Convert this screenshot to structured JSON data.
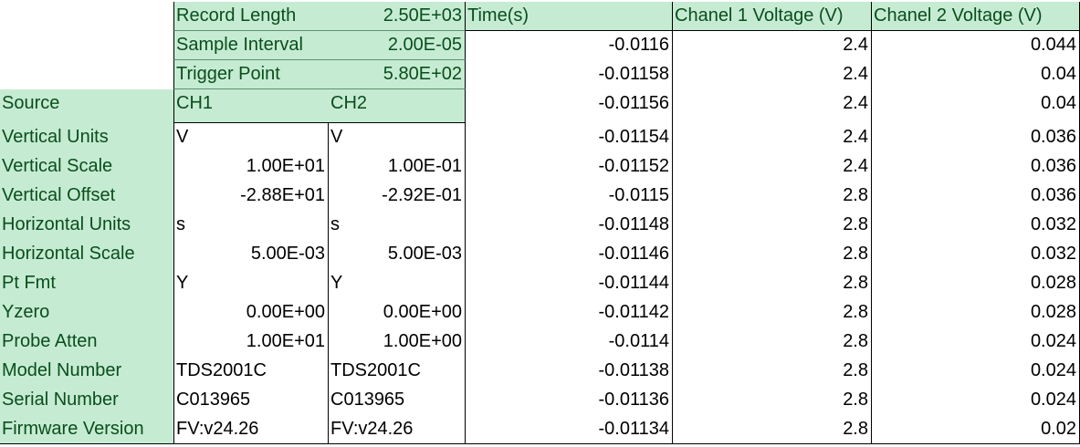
{
  "header_info": [
    {
      "label": "Record Length",
      "value": "2.50E+03"
    },
    {
      "label": "Sample Interval",
      "value": "2.00E-05"
    },
    {
      "label": "Trigger Point",
      "value": "5.80E+02"
    }
  ],
  "data_headers": [
    "Time(s)",
    "Chanel 1 Voltage (V)",
    "Chanel 2 Voltage (V)"
  ],
  "params": [
    {
      "label": "Source",
      "ch1": "CH1",
      "ch2": "CH2"
    },
    {
      "label": "Vertical Units",
      "ch1": "V",
      "ch2": "V"
    },
    {
      "label": "Vertical Scale",
      "ch1": "1.00E+01",
      "ch2": "1.00E-01"
    },
    {
      "label": "Vertical Offset",
      "ch1": "-2.88E+01",
      "ch2": "-2.92E-01"
    },
    {
      "label": "Horizontal Units",
      "ch1": "s",
      "ch2": "s"
    },
    {
      "label": "Horizontal Scale",
      "ch1": "5.00E-03",
      "ch2": "5.00E-03"
    },
    {
      "label": "Pt Fmt",
      "ch1": "Y",
      "ch2": "Y"
    },
    {
      "label": "Yzero",
      "ch1": "0.00E+00",
      "ch2": "0.00E+00"
    },
    {
      "label": "Probe Atten",
      "ch1": "1.00E+01",
      "ch2": "1.00E+00"
    },
    {
      "label": "Model Number",
      "ch1": "TDS2001C",
      "ch2": "TDS2001C"
    },
    {
      "label": "Serial Number",
      "ch1": "C013965",
      "ch2": "C013965"
    },
    {
      "label": "Firmware Version",
      "ch1": "FV:v24.26",
      "ch2": "FV:v24.26"
    }
  ],
  "data_rows": [
    [
      "-0.0116",
      "2.4",
      "0.044"
    ],
    [
      "-0.01158",
      "2.4",
      "0.04"
    ],
    [
      "-0.01156",
      "2.4",
      "0.04"
    ],
    [
      "-0.01154",
      "2.4",
      "0.036"
    ],
    [
      "-0.01152",
      "2.4",
      "0.036"
    ],
    [
      "-0.0115",
      "2.8",
      "0.036"
    ],
    [
      "-0.01148",
      "2.8",
      "0.032"
    ],
    [
      "-0.01146",
      "2.8",
      "0.032"
    ],
    [
      "-0.01144",
      "2.8",
      "0.028"
    ],
    [
      "-0.01142",
      "2.8",
      "0.028"
    ],
    [
      "-0.0114",
      "2.8",
      "0.024"
    ],
    [
      "-0.01138",
      "2.8",
      "0.024"
    ],
    [
      "-0.01136",
      "2.8",
      "0.024"
    ],
    [
      "-0.01134",
      "2.8",
      "0.02"
    ]
  ],
  "colors": {
    "header_fill": "#c5ecd2",
    "header_text": "#0b4d1d",
    "grid_line": "#000000"
  }
}
